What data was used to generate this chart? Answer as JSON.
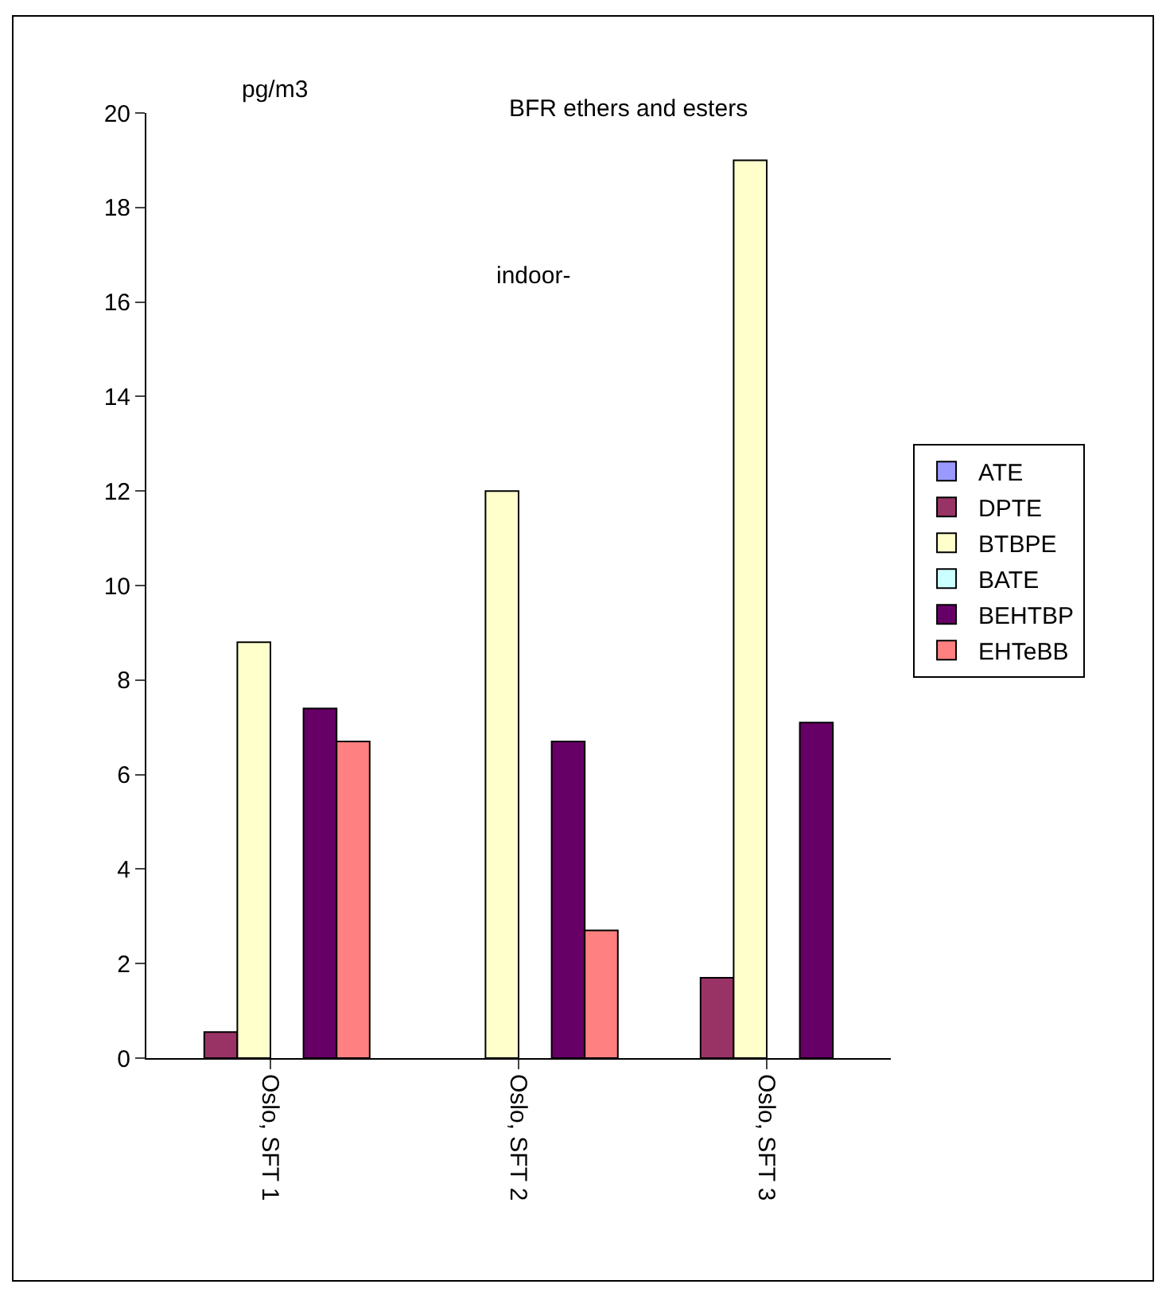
{
  "chart_data": {
    "type": "bar",
    "title": "BFR ethers and esters",
    "ylabel": "pg/m3",
    "annotations": [
      "indoor-"
    ],
    "categories": [
      "Oslo, SFT 1",
      "Oslo, SFT 2",
      "Oslo, SFT 3"
    ],
    "series": [
      {
        "name": "ATE",
        "color": "#9999ff",
        "values": [
          null,
          null,
          null
        ]
      },
      {
        "name": "DPTE",
        "color": "#993366",
        "values": [
          0.55,
          null,
          1.7
        ]
      },
      {
        "name": "BTBPE",
        "color": "#ffffcc",
        "values": [
          8.8,
          12,
          19
        ]
      },
      {
        "name": "BATE",
        "color": "#ccffff",
        "values": [
          null,
          null,
          null
        ]
      },
      {
        "name": "BEHTBP",
        "color": "#660066",
        "values": [
          7.4,
          6.7,
          7.1
        ]
      },
      {
        "name": "EHTeBB",
        "color": "#ff8080",
        "values": [
          6.7,
          2.7,
          null
        ]
      }
    ],
    "ylim": [
      0,
      20
    ],
    "yticks": [
      0,
      2,
      4,
      6,
      8,
      10,
      12,
      14,
      16,
      18,
      20
    ],
    "grid": false,
    "legend": "right"
  }
}
